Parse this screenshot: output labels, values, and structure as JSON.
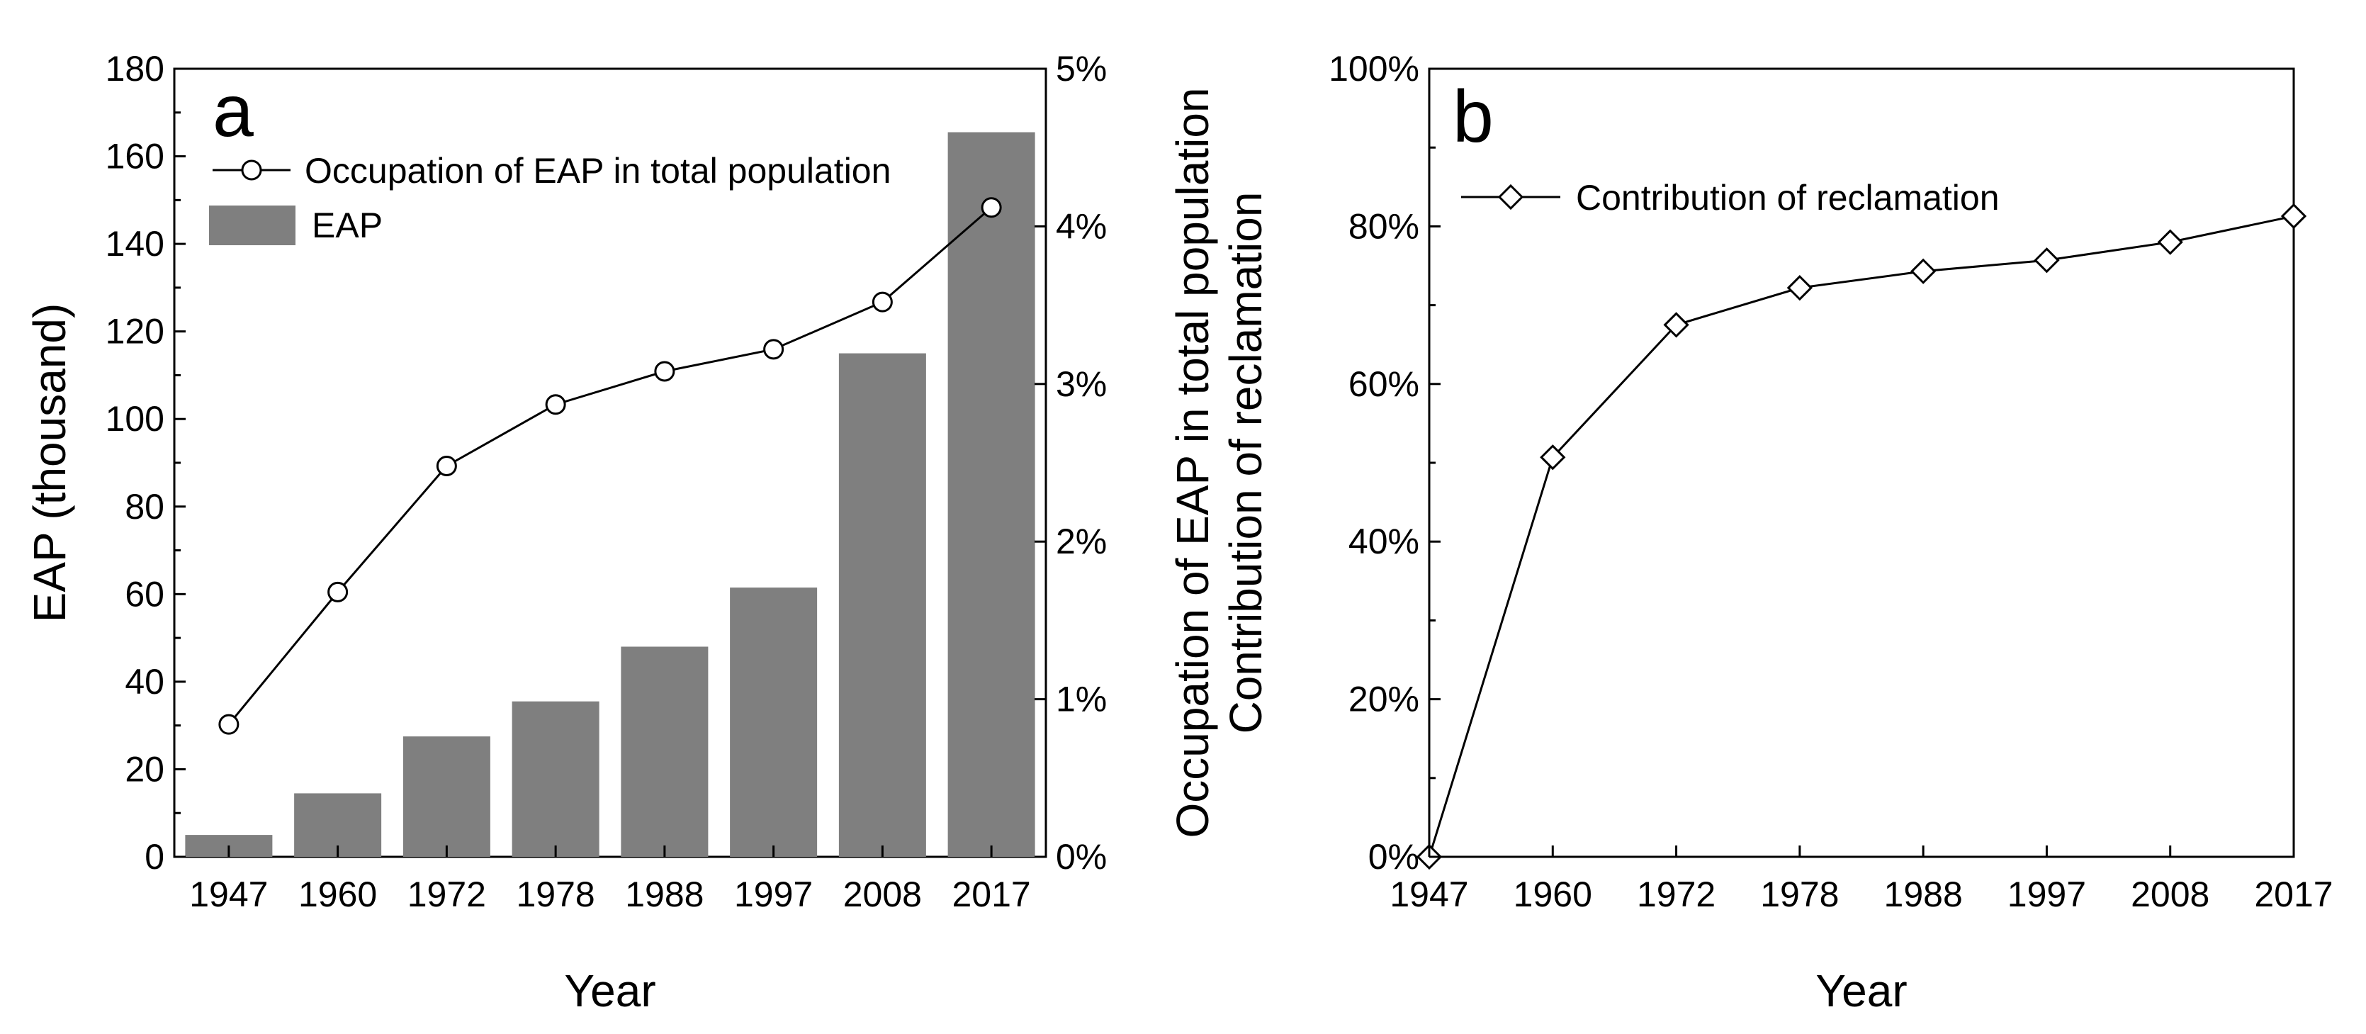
{
  "chart_data": [
    {
      "panel": "a",
      "type": "bar",
      "categories": [
        "1947",
        "1960",
        "1972",
        "1978",
        "1988",
        "1997",
        "2008",
        "2017"
      ],
      "xlabel": "Year",
      "ylabel": "EAP (thousand)",
      "ylabel_right": "Occupation of EAP in total population",
      "ylim": [
        0,
        180
      ],
      "y_ticks": [
        "0",
        "20",
        "40",
        "60",
        "80",
        "100",
        "120",
        "140",
        "160",
        "180"
      ],
      "ylim_right": [
        0,
        5
      ],
      "y_ticks_right": [
        "0%",
        "1%",
        "2%",
        "3%",
        "4%",
        "5%"
      ],
      "grid": false,
      "legend_position": "top-left",
      "series": [
        {
          "name": "EAP",
          "type": "bar",
          "axis": "left",
          "color": "#7f7f7f",
          "values": [
            5,
            14.5,
            27.5,
            35.5,
            48,
            61.5,
            115,
            165.5
          ]
        },
        {
          "name": "Occupation of EAP in total population",
          "type": "line",
          "axis": "right",
          "marker": "circle",
          "unit": "%",
          "values": [
            0.84,
            1.68,
            2.48,
            2.87,
            3.08,
            3.22,
            3.52,
            4.12
          ]
        }
      ]
    },
    {
      "panel": "b",
      "type": "line",
      "categories": [
        "1947",
        "1960",
        "1972",
        "1978",
        "1988",
        "1997",
        "2008",
        "2017"
      ],
      "xlabel": "Year",
      "ylabel": "Contribution of reclamation",
      "ylim": [
        0,
        100
      ],
      "y_ticks": [
        "0%",
        "20%",
        "40%",
        "60%",
        "80%",
        "100%"
      ],
      "grid": false,
      "legend_position": "top-left",
      "series": [
        {
          "name": "Contribution of reclamation",
          "marker": "diamond",
          "unit": "%",
          "values": [
            0,
            50.7,
            67.5,
            72.2,
            74.3,
            75.7,
            78.0,
            81.3
          ]
        }
      ]
    }
  ]
}
